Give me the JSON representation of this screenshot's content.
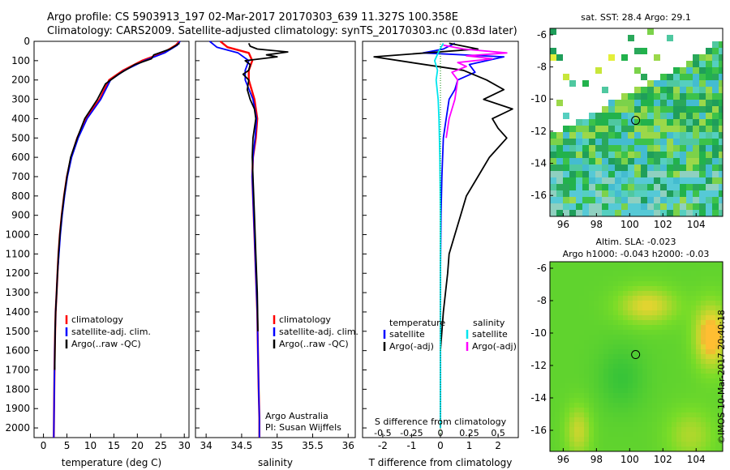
{
  "header": {
    "line1": "Argo profile: CS 5903913_197 02-Mar-2017 20170303_639 11.327S 100.358E",
    "line2": "Climatology: CARS2009. Satellite-adjusted climatology: synTS_20170303.nc (0.83d later)"
  },
  "credit": "©IMOS 10-Mar-2017 20:40:18",
  "colors": {
    "climatology": "#ff0000",
    "satellite": "#0000ff",
    "argo": "#000000",
    "sat_salinity": "#00e5ee",
    "argo_salinity": "#ff00ff"
  },
  "chart_data": [
    {
      "type": "line",
      "panel": "temperature",
      "xlabel": "temperature (deg C)",
      "ylim": [
        2050,
        0
      ],
      "xlim": [
        -2,
        31
      ],
      "xticks": [
        0,
        5,
        10,
        15,
        20,
        25,
        30
      ],
      "xtick_labels": [
        "0",
        "5",
        "10",
        "15",
        "20",
        "25",
        "30"
      ],
      "yticks": [
        0,
        100,
        200,
        300,
        400,
        500,
        600,
        700,
        800,
        900,
        1000,
        1100,
        1200,
        1300,
        1400,
        1500,
        1600,
        1700,
        1800,
        1900,
        2000
      ],
      "ytick_labels": [
        "0",
        "100",
        "200",
        "300",
        "400",
        "500",
        "600",
        "700",
        "800",
        "900",
        "1000",
        "1100",
        "1200",
        "1300",
        "1400",
        "1500",
        "1600",
        "1700",
        "1800",
        "1900",
        "2000"
      ],
      "legend": [
        "climatology",
        "satellite-adj. clim.",
        "Argo(..raw -QC)"
      ],
      "series": [
        {
          "name": "climatology",
          "color": "#ff0000",
          "x": [
            29.0,
            28.2,
            25.5,
            21.0,
            17.0,
            14.0,
            12.0,
            9.0,
            7.2,
            5.9,
            5.0,
            4.4,
            3.9,
            3.5,
            3.2,
            3.0,
            2.8,
            2.6,
            2.5,
            2.4,
            2.3,
            2.2
          ],
          "y": [
            0,
            20,
            60,
            100,
            150,
            200,
            300,
            400,
            500,
            600,
            700,
            800,
            900,
            1000,
            1100,
            1200,
            1300,
            1400,
            1500,
            1600,
            1800,
            2050
          ]
        },
        {
          "name": "satellite-adj. clim.",
          "color": "#0000ff",
          "x": [
            29.1,
            28.5,
            25.8,
            21.5,
            17.3,
            14.3,
            12.2,
            9.3,
            7.4,
            6.0,
            5.1,
            4.5,
            4.0,
            3.6,
            3.3,
            3.0,
            2.8,
            2.6,
            2.5,
            2.4,
            2.3,
            2.2
          ],
          "y": [
            0,
            20,
            60,
            100,
            150,
            200,
            300,
            400,
            500,
            600,
            700,
            800,
            900,
            1000,
            1100,
            1200,
            1300,
            1400,
            1500,
            1600,
            1800,
            2050
          ]
        },
        {
          "name": "Argo(..raw -QC)",
          "color": "#000000",
          "x": [
            29.0,
            27.0,
            23.5,
            23.0,
            19.5,
            16.0,
            13.2,
            11.5,
            8.8,
            7.2,
            5.8,
            5.0,
            4.4,
            3.9,
            3.5,
            3.2,
            3.0,
            2.8,
            2.6,
            2.5,
            2.4
          ],
          "y": [
            10,
            40,
            70,
            90,
            120,
            170,
            220,
            300,
            400,
            500,
            600,
            700,
            800,
            900,
            1000,
            1100,
            1200,
            1300,
            1400,
            1500,
            1700
          ]
        }
      ]
    },
    {
      "type": "line",
      "panel": "salinity",
      "xlabel": "salinity",
      "ylim": [
        2050,
        0
      ],
      "xlim": [
        33.85,
        36.1
      ],
      "xticks": [
        34,
        34.5,
        35,
        35.5,
        36
      ],
      "xtick_labels": [
        "34",
        "34.5",
        "35",
        "35.5",
        "36"
      ],
      "legend": [
        "climatology",
        "satellite-adj. clim.",
        "Argo(..raw -QC)"
      ],
      "annotation": [
        "Argo Australia",
        "PI: Susan Wijffels"
      ],
      "series": [
        {
          "name": "climatology",
          "color": "#ff0000",
          "x": [
            34.2,
            34.3,
            34.6,
            34.65,
            34.6,
            34.6,
            34.68,
            34.72,
            34.7,
            34.66,
            34.65,
            34.66,
            34.68,
            34.7,
            34.72,
            34.73,
            34.74,
            34.75,
            34.75
          ],
          "y": [
            0,
            30,
            60,
            100,
            150,
            200,
            300,
            400,
            500,
            600,
            700,
            800,
            1000,
            1200,
            1400,
            1600,
            1800,
            1950,
            2050
          ]
        },
        {
          "name": "satellite-adj. clim.",
          "color": "#0000ff",
          "x": [
            34.05,
            34.15,
            34.45,
            34.6,
            34.55,
            34.55,
            34.66,
            34.71,
            34.69,
            34.66,
            34.65,
            34.66,
            34.68,
            34.7,
            34.72,
            34.73,
            34.74,
            34.75,
            34.75
          ],
          "y": [
            0,
            30,
            60,
            100,
            150,
            200,
            300,
            400,
            500,
            600,
            700,
            800,
            1000,
            1200,
            1400,
            1600,
            1800,
            1950,
            2050
          ]
        },
        {
          "name": "Argo(..raw -QC)",
          "color": "#000000",
          "x": [
            34.6,
            34.62,
            34.72,
            35.15,
            34.85,
            35.0,
            34.55,
            34.62,
            34.6,
            34.52,
            34.6,
            34.58,
            34.62,
            34.68,
            34.7,
            34.66,
            34.65,
            34.66,
            34.68,
            34.7,
            34.72,
            34.73
          ],
          "y": [
            10,
            25,
            40,
            55,
            70,
            80,
            100,
            120,
            150,
            170,
            200,
            250,
            300,
            350,
            400,
            500,
            600,
            700,
            900,
            1100,
            1300,
            1500
          ]
        }
      ]
    },
    {
      "type": "line",
      "panel": "difference",
      "xlabel": "T difference from climatology",
      "xlabel_top": "S difference from climatology",
      "ylim": [
        2050,
        0
      ],
      "xlim": [
        -2.7,
        2.7
      ],
      "xticks": [
        -2,
        -1,
        0,
        1,
        2
      ],
      "xtick_labels": [
        "-2",
        "-1",
        "0",
        "1",
        "2"
      ],
      "xticks_s": [
        -0.5,
        -0.25,
        0,
        0.25,
        0.5
      ],
      "xtick_labels_s": [
        "-0.5",
        "-0.25",
        "0",
        "0.25",
        "0.5"
      ],
      "legend_temperature_title": "temperature",
      "legend_salinity_title": "salinity",
      "legend": [
        "satellite",
        "Argo(-adj)",
        "satellite",
        "Argo(-adj)"
      ],
      "series": [
        {
          "name": "satellite",
          "color": "#0000ff",
          "x": [
            0.5,
            0.1,
            -0.6,
            2.2,
            1.0,
            1.2,
            0.6,
            0.5,
            0.3,
            0.2,
            0.1,
            0.05,
            0.02,
            0.0,
            0.0
          ],
          "y": [
            10,
            40,
            60,
            80,
            120,
            160,
            200,
            250,
            300,
            400,
            500,
            700,
            900,
            1200,
            2000
          ]
        },
        {
          "name": "Argo(-adj)",
          "color": "#000000",
          "x": [
            0.3,
            1.3,
            -2.3,
            -1.0,
            0.8,
            1.6,
            2.2,
            1.5,
            2.5,
            1.8,
            2.0,
            2.3,
            1.7,
            1.3,
            0.9,
            0.7,
            0.5,
            0.3,
            0.25,
            0.1,
            0.0
          ],
          "y": [
            10,
            40,
            80,
            110,
            150,
            200,
            250,
            300,
            350,
            400,
            450,
            500,
            600,
            700,
            800,
            900,
            1000,
            1100,
            1200,
            1400,
            1600
          ]
        },
        {
          "name": "satellite",
          "color": "#00e5ee",
          "x": [
            0.1,
            -0.05,
            -0.2,
            -0.1,
            -0.15,
            -0.08,
            -0.05,
            -0.02,
            0.0,
            0.0,
            0.0
          ],
          "y": [
            10,
            50,
            100,
            150,
            200,
            300,
            400,
            600,
            900,
            1300,
            2000
          ]
        },
        {
          "name": "Argo(-adj)",
          "color": "#ff00ff",
          "x": [
            0.1,
            0.8,
            2.3,
            0.9,
            1.8,
            0.6,
            0.9,
            0.4,
            0.6,
            0.5,
            0.3,
            0.2
          ],
          "y": [
            20,
            40,
            60,
            75,
            90,
            110,
            130,
            160,
            200,
            300,
            400,
            500
          ]
        }
      ]
    },
    {
      "type": "heatmap",
      "panel": "map_sst",
      "title": "sat. SST: 28.4  Argo: 29.1",
      "xlim": [
        95.2,
        105.6
      ],
      "ylim": [
        -17.3,
        -5.6
      ],
      "xticks": [
        96,
        98,
        100,
        102,
        104
      ],
      "xtick_labels": [
        "96",
        "98",
        "100",
        "102",
        "104"
      ],
      "yticks": [
        -6,
        -8,
        -10,
        -12,
        -14,
        -16
      ],
      "ytick_labels": [
        "-6",
        "-8",
        "-10",
        "-12",
        "-14",
        "-16"
      ],
      "marker": {
        "lon": 100.358,
        "lat": -11.327
      }
    },
    {
      "type": "heatmap",
      "panel": "map_sla",
      "title_lines": [
        "Altim. SLA: -0.023",
        "Argo h1000: -0.043 h2000: -0.03"
      ],
      "xlim": [
        95.2,
        105.6
      ],
      "ylim": [
        -17.3,
        -5.6
      ],
      "xticks": [
        96,
        98,
        100,
        102,
        104
      ],
      "xtick_labels": [
        "96",
        "98",
        "100",
        "102",
        "104"
      ],
      "yticks": [
        -6,
        -8,
        -10,
        -12,
        -14,
        -16
      ],
      "ytick_labels": [
        "-6",
        "-8",
        "-10",
        "-12",
        "-14",
        "-16"
      ],
      "marker": {
        "lon": 100.358,
        "lat": -11.327
      }
    }
  ]
}
